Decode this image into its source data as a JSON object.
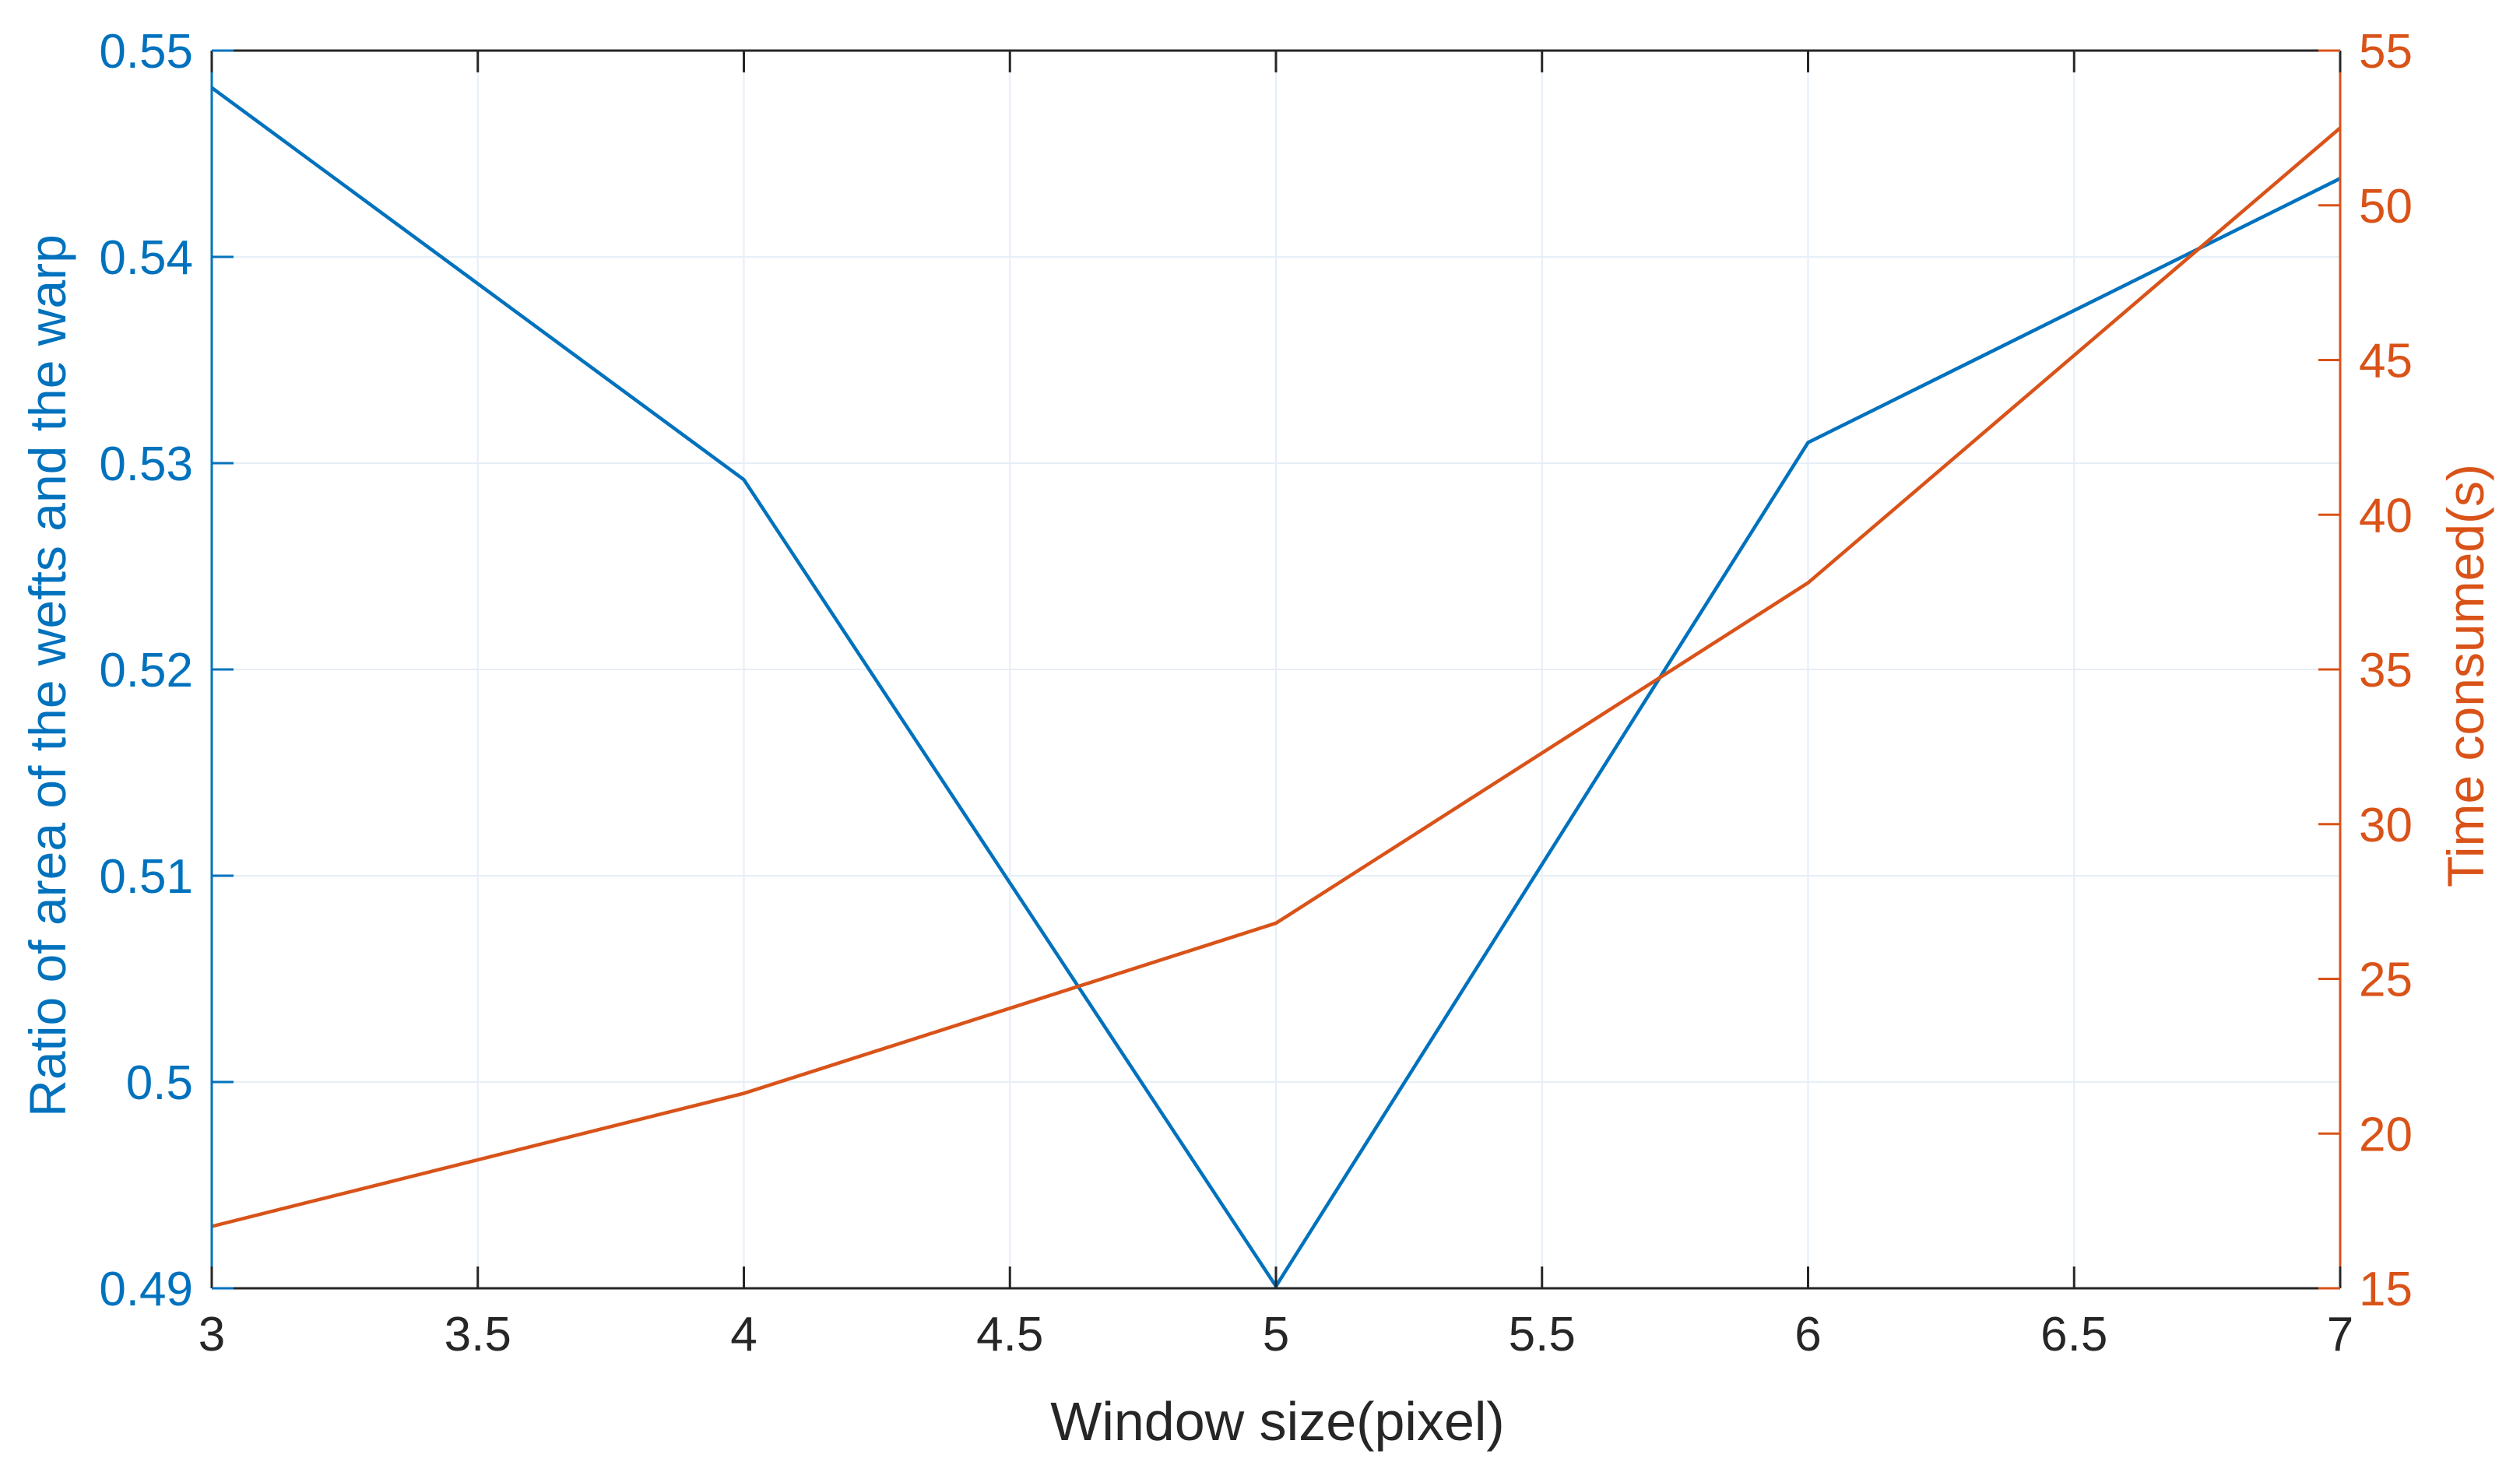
{
  "chart_data": {
    "type": "line",
    "xlabel": "Window size(pixel)",
    "ylabel_left": "Ratio of area of the wefts and the warp",
    "ylabel_right": "Time consumed(s)",
    "xlim": [
      3,
      7
    ],
    "ylim_left": [
      0.49,
      0.55
    ],
    "ylim_right": [
      15,
      55
    ],
    "x_ticks": [
      "3",
      "3.5",
      "4",
      "4.5",
      "5",
      "5.5",
      "6",
      "6.5",
      "7"
    ],
    "y_left_ticks": [
      "0.49",
      "0.5",
      "0.51",
      "0.52",
      "0.53",
      "0.54",
      "0.55"
    ],
    "y_right_ticks": [
      "15",
      "20",
      "25",
      "30",
      "35",
      "40",
      "45",
      "50",
      "55"
    ],
    "grid": true,
    "x": [
      3,
      4,
      5,
      6,
      7
    ],
    "series": [
      {
        "axis": "left",
        "color": "#0072BD",
        "values": [
          0.5482,
          0.5292,
          0.4901,
          0.531,
          0.5438
        ]
      },
      {
        "axis": "right",
        "color": "#D95319",
        "values": [
          17.0,
          21.3,
          26.8,
          37.8,
          52.5
        ]
      }
    ],
    "colors": {
      "left_axis": "#0072BD",
      "right_axis": "#D95319",
      "x_axis": "#262626",
      "grid": "#e6eef7"
    }
  }
}
